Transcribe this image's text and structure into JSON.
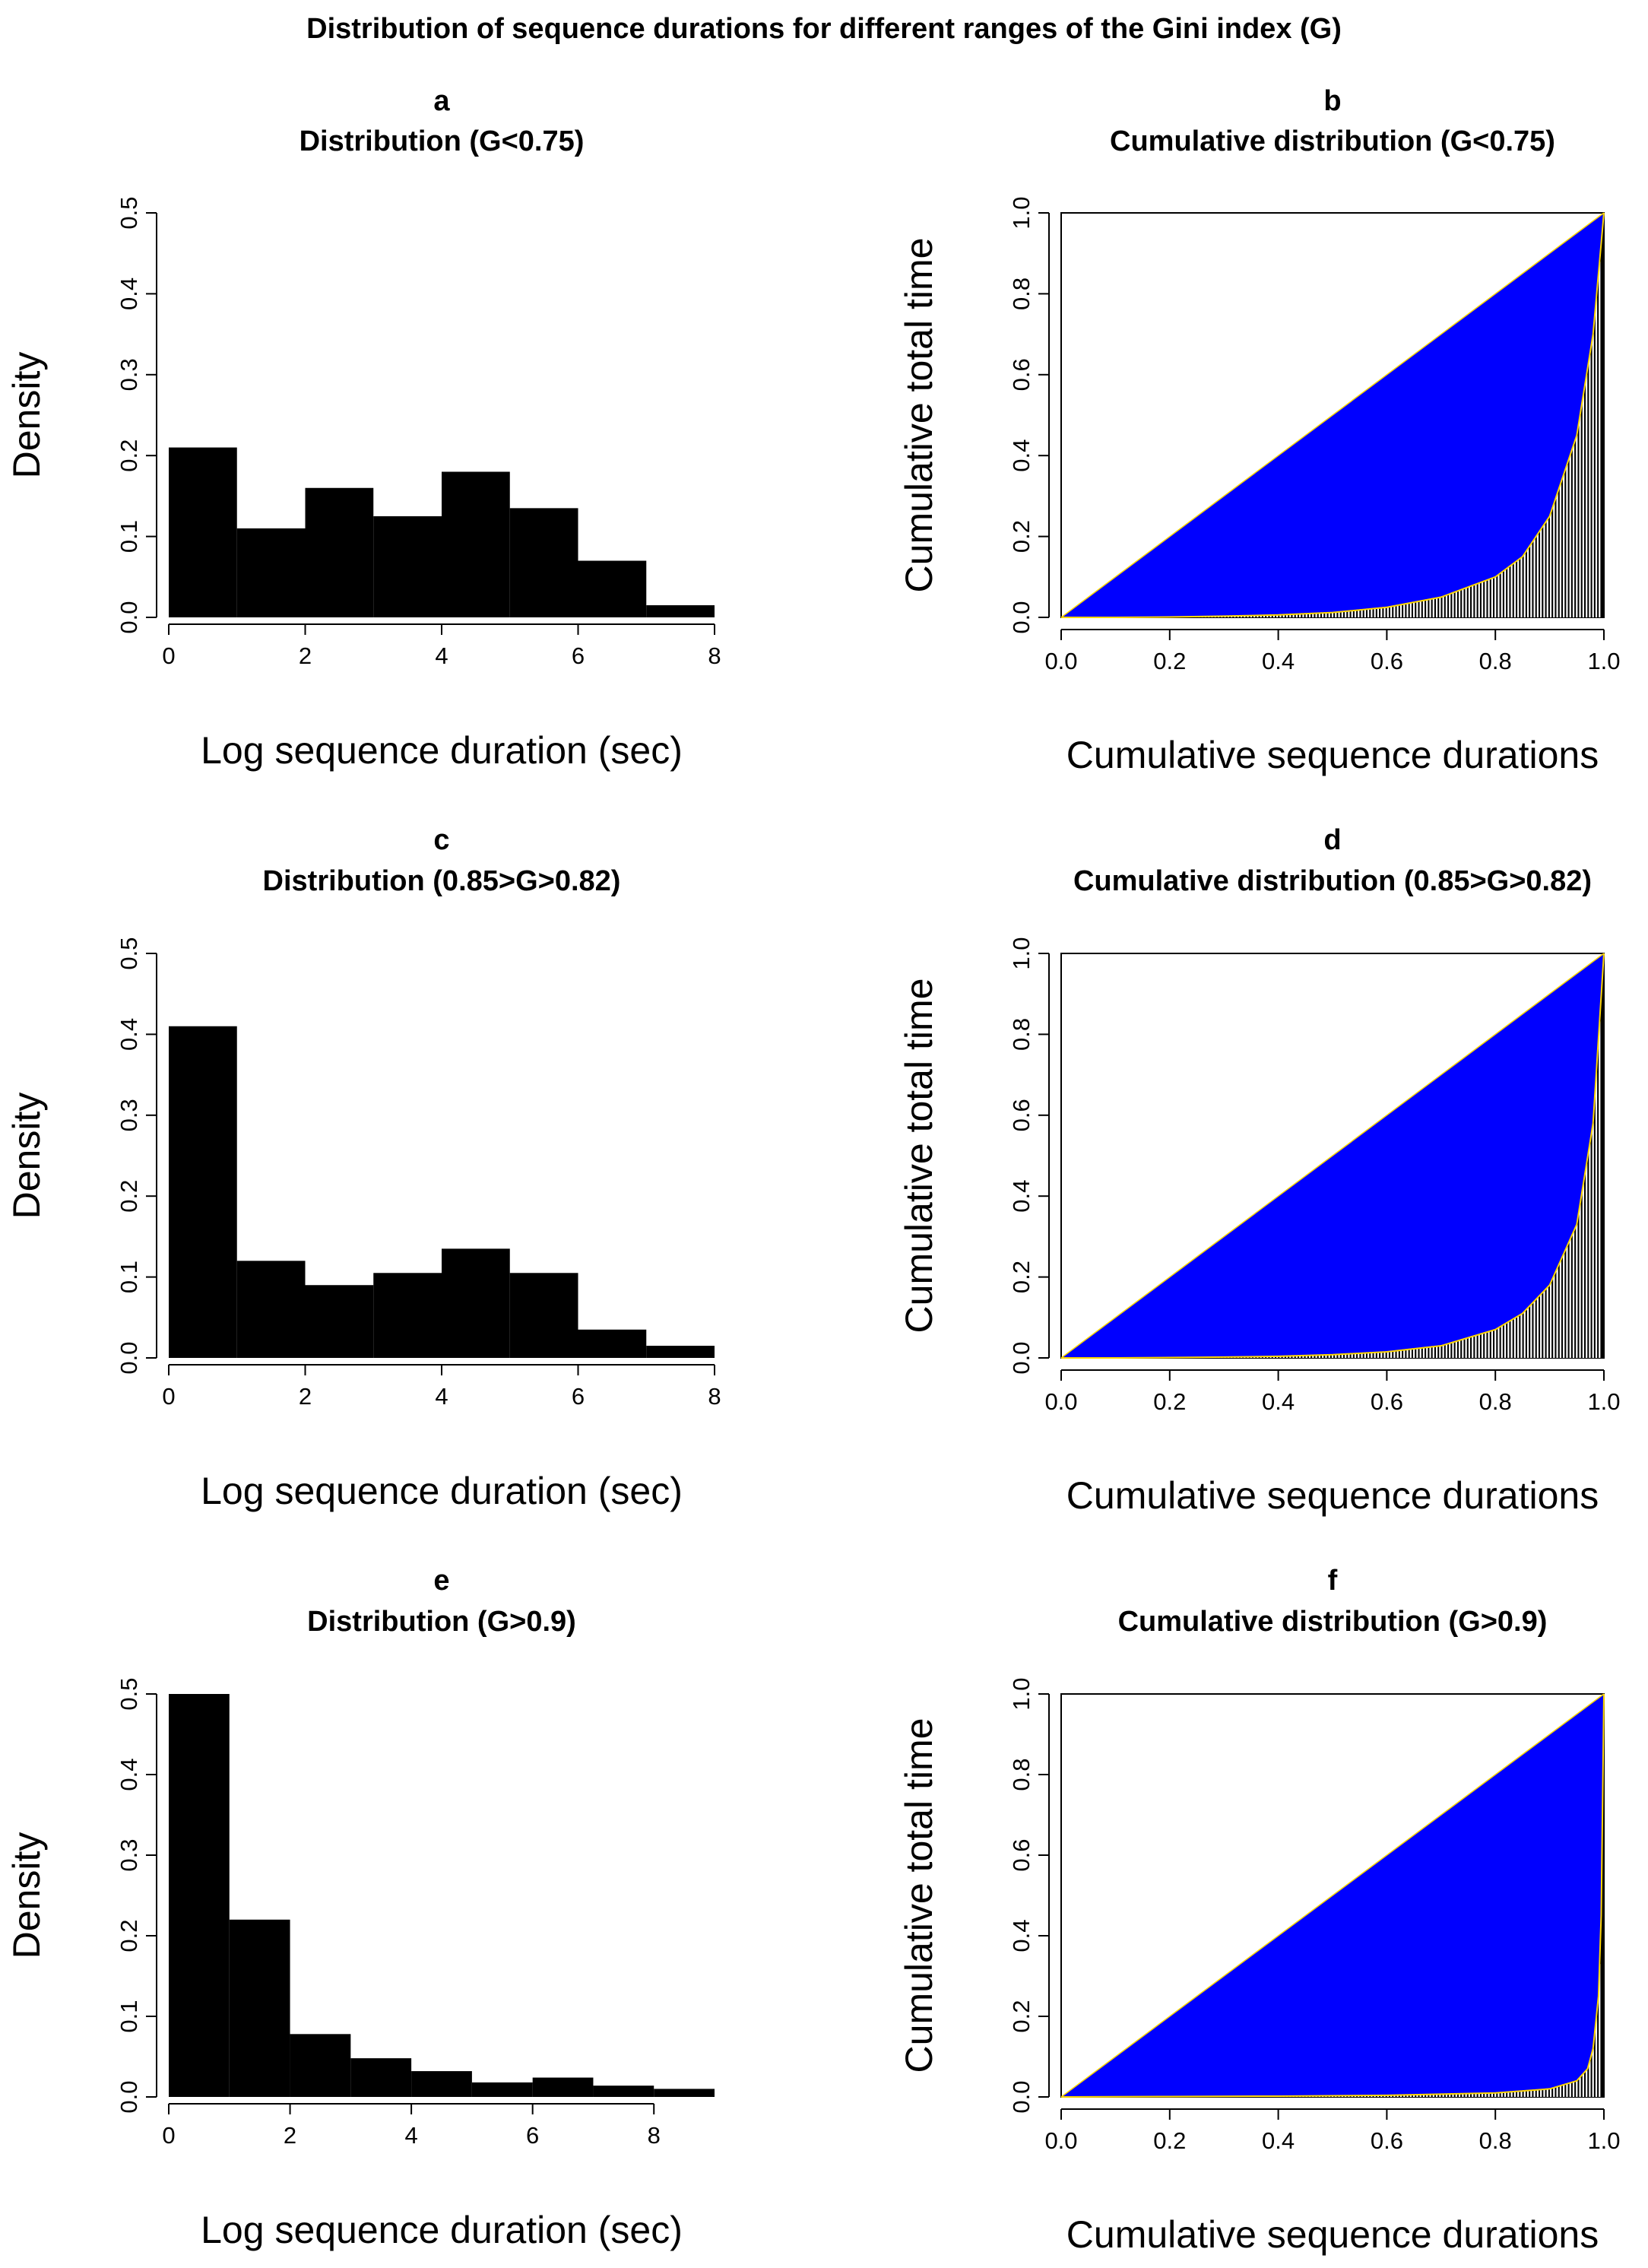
{
  "figure_title": "Distribution of sequence durations for different ranges of the Gini index (G)",
  "colors": {
    "bars": "#000000",
    "lorenz_fill": "#0000ff",
    "curve": "#ffd700",
    "axis": "#000000"
  },
  "chart_data": [
    {
      "panel": "a",
      "type": "bar",
      "title": "Distribution (G<0.75)",
      "xlabel": "Log sequence duration (sec)",
      "ylabel": "Density",
      "bin_edges": [
        0,
        1,
        2,
        3,
        4,
        5,
        6,
        7,
        8
      ],
      "values": [
        0.21,
        0.11,
        0.16,
        0.125,
        0.18,
        0.135,
        0.07,
        0.015
      ],
      "xlim": [
        0,
        8
      ],
      "ylim": [
        0,
        0.5
      ],
      "xticks": [
        "0",
        "2",
        "4",
        "6",
        "8"
      ],
      "yticks": [
        "0.0",
        "0.1",
        "0.2",
        "0.3",
        "0.4",
        "0.5"
      ]
    },
    {
      "panel": "b",
      "type": "area",
      "title": "Cumulative distribution (G<0.75)",
      "xlabel": "Cumulative sequence durations",
      "ylabel": "Cumulative total time",
      "x": [
        0,
        0.1,
        0.2,
        0.3,
        0.4,
        0.5,
        0.6,
        0.7,
        0.8,
        0.85,
        0.9,
        0.95,
        0.98,
        1.0
      ],
      "y": [
        0,
        0.0,
        0.001,
        0.003,
        0.006,
        0.012,
        0.025,
        0.05,
        0.1,
        0.15,
        0.25,
        0.45,
        0.7,
        1.0
      ],
      "xlim": [
        0,
        1
      ],
      "ylim": [
        0,
        1
      ],
      "xticks": [
        "0.0",
        "0.2",
        "0.4",
        "0.6",
        "0.8",
        "1.0"
      ],
      "yticks": [
        "0.0",
        "0.2",
        "0.4",
        "0.6",
        "0.8",
        "1.0"
      ]
    },
    {
      "panel": "c",
      "type": "bar",
      "title": "Distribution (0.85>G>0.82)",
      "xlabel": "Log sequence duration (sec)",
      "ylabel": "Density",
      "bin_edges": [
        0,
        1,
        2,
        3,
        4,
        5,
        6,
        7,
        8
      ],
      "values": [
        0.41,
        0.12,
        0.09,
        0.105,
        0.135,
        0.105,
        0.035,
        0.015
      ],
      "xlim": [
        0,
        8
      ],
      "ylim": [
        0,
        0.5
      ],
      "xticks": [
        "0",
        "2",
        "4",
        "6",
        "8"
      ],
      "yticks": [
        "0.0",
        "0.1",
        "0.2",
        "0.3",
        "0.4",
        "0.5"
      ]
    },
    {
      "panel": "d",
      "type": "area",
      "title": "Cumulative distribution (0.85>G>0.82)",
      "xlabel": "Cumulative sequence durations",
      "ylabel": "Cumulative total time",
      "x": [
        0,
        0.1,
        0.2,
        0.3,
        0.4,
        0.5,
        0.6,
        0.7,
        0.8,
        0.85,
        0.9,
        0.95,
        0.98,
        1.0
      ],
      "y": [
        0,
        0.0,
        0.001,
        0.002,
        0.004,
        0.008,
        0.015,
        0.03,
        0.07,
        0.11,
        0.18,
        0.33,
        0.58,
        1.0
      ],
      "xlim": [
        0,
        1
      ],
      "ylim": [
        0,
        1
      ],
      "xticks": [
        "0.0",
        "0.2",
        "0.4",
        "0.6",
        "0.8",
        "1.0"
      ],
      "yticks": [
        "0.0",
        "0.2",
        "0.4",
        "0.6",
        "0.8",
        "1.0"
      ]
    },
    {
      "panel": "e",
      "type": "bar",
      "title": "Distribution  (G>0.9)",
      "xlabel": "Log sequence duration (sec)",
      "ylabel": "Density",
      "bin_edges": [
        0,
        1,
        2,
        3,
        4,
        5,
        6,
        7,
        8,
        9
      ],
      "values": [
        0.52,
        0.22,
        0.078,
        0.048,
        0.032,
        0.018,
        0.024,
        0.014,
        0.01
      ],
      "xlim": [
        0,
        9
      ],
      "ylim": [
        0,
        0.5
      ],
      "xticks": [
        "0",
        "2",
        "4",
        "6",
        "8"
      ],
      "yticks": [
        "0.0",
        "0.1",
        "0.2",
        "0.3",
        "0.4",
        "0.5"
      ]
    },
    {
      "panel": "f",
      "type": "area",
      "title": "Cumulative distribution (G>0.9)",
      "xlabel": "Cumulative sequence durations",
      "ylabel": "Cumulative total time",
      "x": [
        0,
        0.2,
        0.4,
        0.6,
        0.8,
        0.9,
        0.95,
        0.97,
        0.98,
        0.99,
        0.995,
        1.0
      ],
      "y": [
        0,
        0.001,
        0.002,
        0.004,
        0.01,
        0.02,
        0.04,
        0.07,
        0.12,
        0.25,
        0.45,
        1.0
      ],
      "xlim": [
        0,
        1
      ],
      "ylim": [
        0,
        1
      ],
      "xticks": [
        "0.0",
        "0.2",
        "0.4",
        "0.6",
        "0.8",
        "1.0"
      ],
      "yticks": [
        "0.0",
        "0.2",
        "0.4",
        "0.6",
        "0.8",
        "1.0"
      ]
    }
  ]
}
